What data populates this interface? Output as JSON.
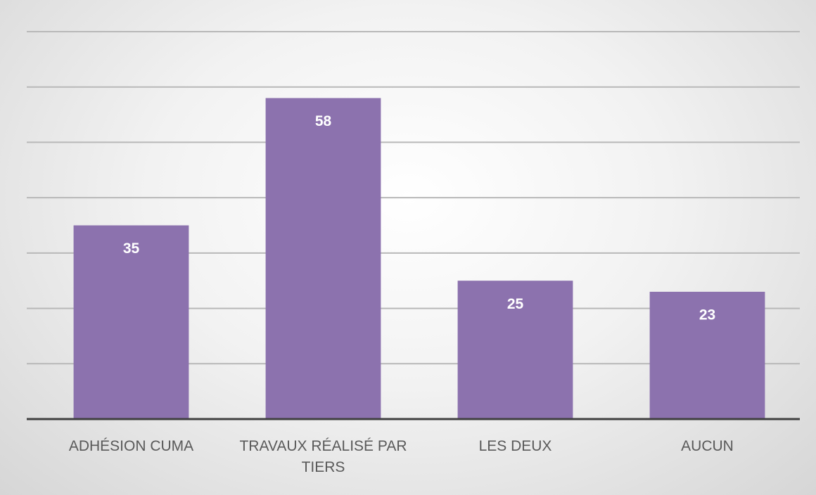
{
  "chart_data": {
    "type": "bar",
    "categories": [
      "ADHÉSION CUMA",
      "TRAVAUX RÉALISÉ PAR TIERS",
      "LES DEUX",
      "AUCUN"
    ],
    "values": [
      35,
      58,
      25,
      23
    ],
    "color": "#8c72ae",
    "ylim": [
      0,
      70
    ],
    "yticks": [
      0,
      10,
      20,
      30,
      40,
      50,
      60,
      70
    ],
    "grid": true
  }
}
